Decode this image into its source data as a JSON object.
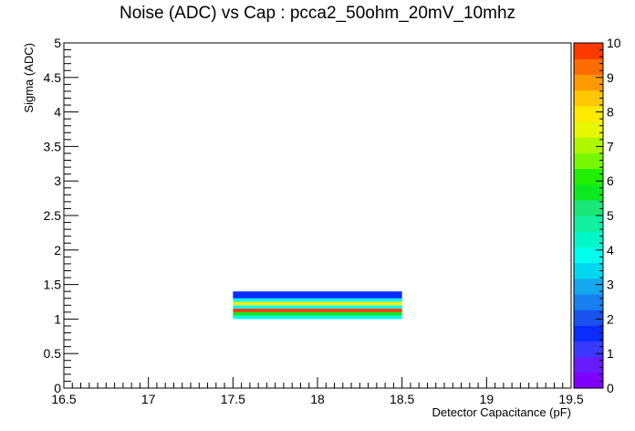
{
  "chart_data": {
    "type": "heatmap",
    "title": "Noise (ADC) vs Cap : pcca2_50ohm_20mV_10mhz",
    "xlabel": "Detector Capacitance (pF)",
    "ylabel": "Sigma (ADC)",
    "xlim": [
      16.5,
      19.5
    ],
    "ylim": [
      0,
      5
    ],
    "x_ticks": [
      "16.5",
      "17",
      "17.5",
      "18",
      "18.5",
      "19",
      "19.5"
    ],
    "y_ticks": [
      "0",
      "0.5",
      "1",
      "1.5",
      "2",
      "2.5",
      "3",
      "3.5",
      "4",
      "4.5",
      "5"
    ],
    "z_range": [
      0,
      10
    ],
    "z_ticks": [
      "0",
      "1",
      "2",
      "3",
      "4",
      "5",
      "6",
      "7",
      "8",
      "9",
      "10"
    ],
    "grid": false,
    "palette": [
      "#7f00ff",
      "#6a1aff",
      "#3a3aff",
      "#0a2cff",
      "#1a52f0",
      "#1880f0",
      "#12a8ee",
      "#00d8f0",
      "#00ffee",
      "#00f8c8",
      "#10f0a0",
      "#18e878",
      "#0bea20",
      "#20f000",
      "#78f800",
      "#b0f800",
      "#e8f800",
      "#ffea00",
      "#ffc800",
      "#ff9a00",
      "#ff6c00",
      "#ff3a00"
    ],
    "cells": [
      {
        "x0": 17.5,
        "x1": 18.5,
        "y0": 1.0,
        "y1": 1.05,
        "z": 3.8
      },
      {
        "x0": 17.5,
        "x1": 18.5,
        "y0": 1.05,
        "y1": 1.1,
        "z": 5.5
      },
      {
        "x0": 17.5,
        "x1": 18.5,
        "y0": 1.1,
        "y1": 1.15,
        "z": 10.0
      },
      {
        "x0": 17.5,
        "x1": 18.5,
        "y0": 1.15,
        "y1": 1.2,
        "z": 3.8
      },
      {
        "x0": 17.5,
        "x1": 18.5,
        "y0": 1.2,
        "y1": 1.25,
        "z": 8.0
      },
      {
        "x0": 17.5,
        "x1": 18.5,
        "y0": 1.25,
        "y1": 1.3,
        "z": 3.8
      },
      {
        "x0": 17.5,
        "x1": 18.5,
        "y0": 1.3,
        "y1": 1.4,
        "z": 1.5
      }
    ]
  }
}
